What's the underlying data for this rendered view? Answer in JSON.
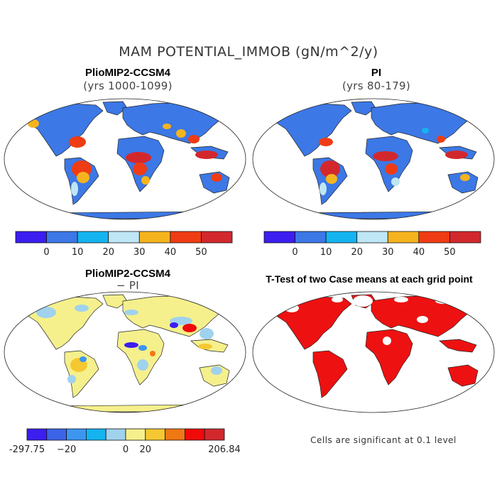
{
  "figure": {
    "title": "MAM POTENTIAL_IMMOB (gN/m^2/y)"
  },
  "panels": [
    {
      "title": "PlioMIP2-CCSM4",
      "subtitle": "(yrs 1000-1099)",
      "kind": "field"
    },
    {
      "title": "PI",
      "subtitle": "(yrs 80-179)",
      "kind": "field"
    },
    {
      "title": "PlioMIP2-CCSM4",
      "subtitle": "− PI",
      "kind": "difference"
    },
    {
      "title": "T-Test of two Case means at each grid point",
      "subtitle": "",
      "kind": "significance",
      "note": "Cells are significant at 0.1 level"
    }
  ],
  "colorbar_abs": {
    "colors": [
      "#3c1ef0",
      "#3c78e6",
      "#14b4f0",
      "#bee6f5",
      "#f5b41e",
      "#f03c14",
      "#d2282d"
    ],
    "labels": [
      "0",
      "10",
      "20",
      "30",
      "40",
      "50"
    ]
  },
  "colorbar_diff": {
    "colors": [
      "#3c1ef0",
      "#3c64e6",
      "#3c96f0",
      "#14b4f0",
      "#a0d2ee",
      "#f5f08c",
      "#f5c832",
      "#f07814",
      "#f00a0a",
      "#d2282d"
    ],
    "labels": [
      "-297.75",
      "−20",
      "0",
      "20",
      "206.84"
    ]
  },
  "colors": {
    "ocean": "#ffffff",
    "map_base": "#3c78e6",
    "diff_base": "#f5f08c",
    "significant": "#ee1111"
  }
}
